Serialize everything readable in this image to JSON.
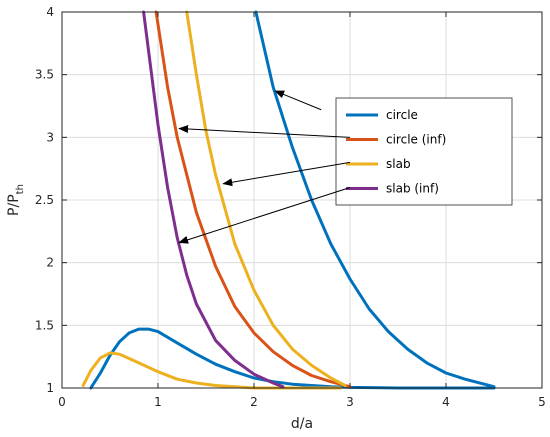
{
  "chart_data": {
    "type": "line",
    "xlabel": "d/a",
    "ylabel_main": "P/P",
    "ylabel_sub": "th",
    "xlim": [
      0,
      5
    ],
    "ylim": [
      1,
      4
    ],
    "xticks": [
      0,
      1,
      2,
      3,
      4,
      5
    ],
    "yticks": [
      1,
      1.5,
      2,
      2.5,
      3,
      3.5,
      4
    ],
    "grid": true,
    "legend_position": "upper-right",
    "series": [
      {
        "name": "circle",
        "color": "#0072BD",
        "branches": [
          [
            [
              0.3,
              1.0
            ],
            [
              0.4,
              1.12
            ],
            [
              0.5,
              1.26
            ],
            [
              0.6,
              1.37
            ],
            [
              0.7,
              1.44
            ],
            [
              0.8,
              1.47
            ],
            [
              0.9,
              1.47
            ],
            [
              1.0,
              1.45
            ],
            [
              1.2,
              1.36
            ],
            [
              1.4,
              1.27
            ],
            [
              1.6,
              1.19
            ],
            [
              1.8,
              1.13
            ],
            [
              2.0,
              1.08
            ],
            [
              2.2,
              1.05
            ],
            [
              2.4,
              1.03
            ],
            [
              2.6,
              1.02
            ],
            [
              2.8,
              1.01
            ],
            [
              3.0,
              1.005
            ],
            [
              3.5,
              1.0
            ],
            [
              4.0,
              1.0
            ],
            [
              4.5,
              1.0
            ]
          ],
          [
            [
              2.02,
              4.0
            ],
            [
              2.2,
              3.4
            ],
            [
              2.4,
              2.92
            ],
            [
              2.6,
              2.5
            ],
            [
              2.8,
              2.15
            ],
            [
              3.0,
              1.87
            ],
            [
              3.2,
              1.63
            ],
            [
              3.4,
              1.45
            ],
            [
              3.6,
              1.31
            ],
            [
              3.8,
              1.2
            ],
            [
              4.0,
              1.12
            ],
            [
              4.2,
              1.07
            ],
            [
              4.4,
              1.03
            ],
            [
              4.5,
              1.01
            ]
          ]
        ]
      },
      {
        "name": "circle (inf)",
        "color": "#D95319",
        "branches": [
          [
            [
              0.98,
              4.0
            ],
            [
              1.1,
              3.4
            ],
            [
              1.2,
              3.0
            ],
            [
              1.4,
              2.4
            ],
            [
              1.6,
              1.97
            ],
            [
              1.8,
              1.65
            ],
            [
              2.0,
              1.44
            ],
            [
              2.2,
              1.29
            ],
            [
              2.4,
              1.18
            ],
            [
              2.6,
              1.1
            ],
            [
              2.8,
              1.05
            ],
            [
              3.0,
              1.01
            ]
          ]
        ]
      },
      {
        "name": "slab",
        "color": "#EDB120",
        "branches": [
          [
            [
              0.22,
              1.02
            ],
            [
              0.3,
              1.14
            ],
            [
              0.4,
              1.24
            ],
            [
              0.5,
              1.28
            ],
            [
              0.6,
              1.27
            ],
            [
              0.8,
              1.2
            ],
            [
              1.0,
              1.13
            ],
            [
              1.2,
              1.07
            ],
            [
              1.4,
              1.04
            ],
            [
              1.6,
              1.02
            ],
            [
              1.8,
              1.01
            ],
            [
              2.0,
              1.0
            ],
            [
              2.5,
              1.0
            ],
            [
              2.9,
              1.0
            ]
          ],
          [
            [
              1.3,
              4.0
            ],
            [
              1.4,
              3.5
            ],
            [
              1.5,
              3.05
            ],
            [
              1.6,
              2.7
            ],
            [
              1.8,
              2.15
            ],
            [
              2.0,
              1.78
            ],
            [
              2.2,
              1.5
            ],
            [
              2.4,
              1.31
            ],
            [
              2.6,
              1.18
            ],
            [
              2.8,
              1.08
            ],
            [
              2.95,
              1.02
            ]
          ]
        ]
      },
      {
        "name": "slab (inf)",
        "color": "#7E2F8E",
        "branches": [
          [
            [
              0.85,
              4.0
            ],
            [
              0.9,
              3.7
            ],
            [
              1.0,
              3.1
            ],
            [
              1.1,
              2.6
            ],
            [
              1.2,
              2.2
            ],
            [
              1.3,
              1.9
            ],
            [
              1.4,
              1.67
            ],
            [
              1.6,
              1.38
            ],
            [
              1.8,
              1.22
            ],
            [
              2.0,
              1.11
            ],
            [
              2.2,
              1.04
            ],
            [
              2.3,
              1.01
            ]
          ]
        ]
      }
    ],
    "annotations": [
      {
        "from": [
          2.7,
          3.22
        ],
        "to": [
          2.22,
          3.37
        ]
      },
      {
        "from": [
          3.0,
          3.0
        ],
        "to": [
          1.22,
          3.07
        ]
      },
      {
        "from": [
          3.0,
          2.8
        ],
        "to": [
          1.68,
          2.63
        ]
      },
      {
        "from": [
          3.0,
          2.6
        ],
        "to": [
          1.22,
          2.16
        ]
      }
    ]
  }
}
